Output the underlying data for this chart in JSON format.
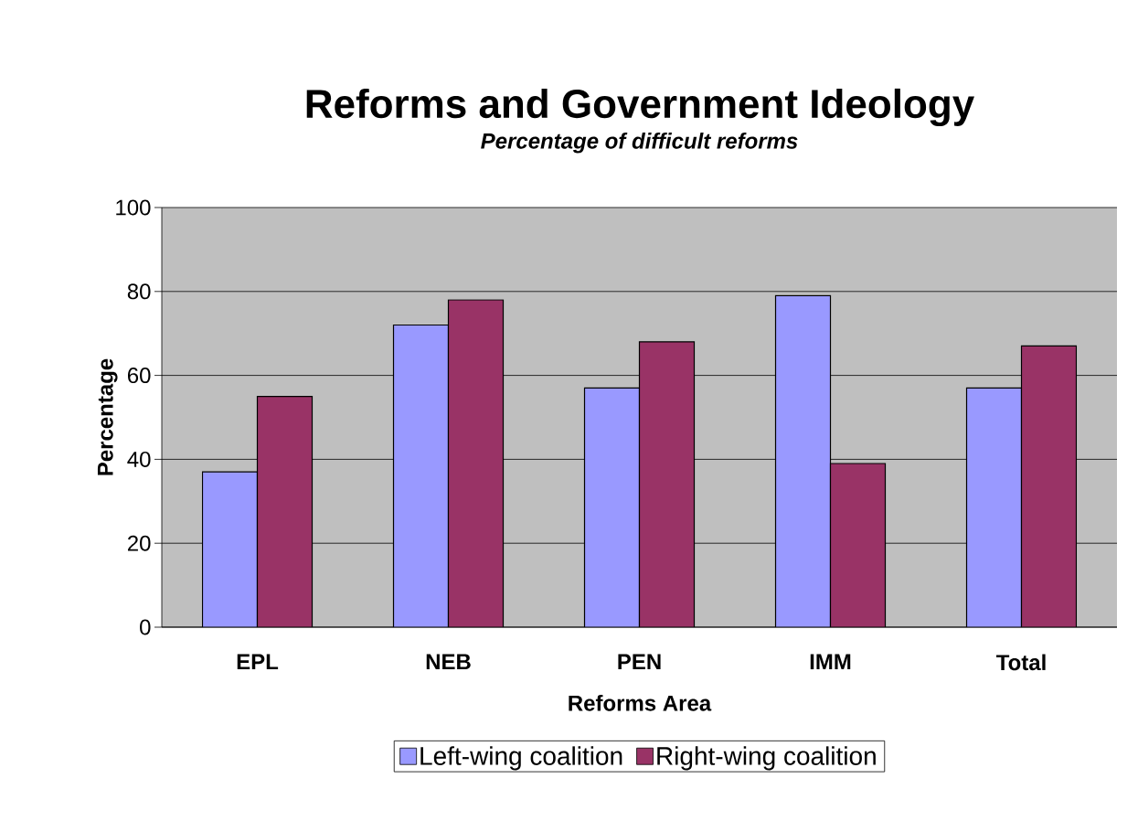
{
  "chart_data": {
    "type": "bar",
    "title": "Reforms and Government Ideology",
    "subtitle": "Percentage of difficult reforms",
    "xlabel": "Reforms Area",
    "ylabel": "Percentage",
    "categories": [
      "EPL",
      "NEB",
      "PEN",
      "IMM",
      "Total"
    ],
    "series": [
      {
        "name": "Left-wing coalition",
        "color": "#9999ff",
        "values": [
          37,
          72,
          57,
          79,
          57
        ]
      },
      {
        "name": "Right-wing coalition",
        "color": "#993366",
        "values": [
          55,
          78,
          68,
          39,
          67
        ]
      }
    ],
    "ylim": [
      0,
      100
    ],
    "yticks": [
      0,
      20,
      40,
      60,
      80,
      100
    ],
    "grid": "y",
    "legend": "bottom"
  }
}
